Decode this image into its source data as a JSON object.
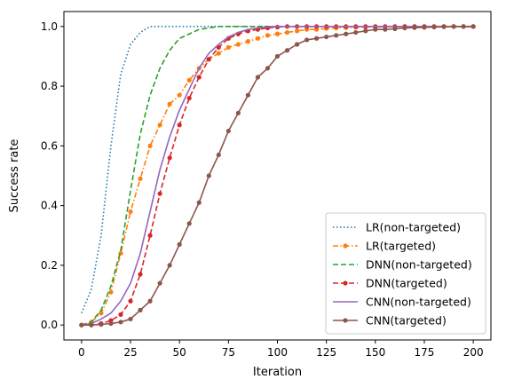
{
  "chart_data": {
    "type": "line",
    "xlabel": "Iteration",
    "ylabel": "Success rate",
    "xlim": [
      -9,
      209
    ],
    "ylim": [
      -0.05,
      1.05
    ],
    "xticks": [
      0,
      25,
      50,
      75,
      100,
      125,
      150,
      175,
      200
    ],
    "yticks": [
      0.0,
      0.2,
      0.4,
      0.6,
      0.8,
      1.0
    ],
    "ytick_labels": [
      "0.0",
      "0.2",
      "0.4",
      "0.6",
      "0.8",
      "1.0"
    ],
    "legend_position": "lower-right",
    "grid": false,
    "series": [
      {
        "name": "LR(non-targeted)",
        "color": "#1f77b4",
        "dash": "dotted",
        "marker": "none",
        "x": [
          0,
          5,
          10,
          15,
          20,
          25,
          30,
          35,
          40,
          50,
          60,
          80,
          100,
          150,
          200
        ],
        "y": [
          0.04,
          0.12,
          0.3,
          0.6,
          0.84,
          0.94,
          0.98,
          1.0,
          1.0,
          1.0,
          1.0,
          1.0,
          1.0,
          1.0,
          1.0
        ]
      },
      {
        "name": "LR(targeted)",
        "color": "#ff7f0e",
        "dash": "dashdot",
        "marker": "dot",
        "x": [
          0,
          5,
          10,
          15,
          20,
          25,
          30,
          35,
          40,
          45,
          50,
          55,
          60,
          65,
          70,
          75,
          80,
          85,
          90,
          95,
          100,
          105,
          110,
          115,
          120,
          125,
          130,
          135,
          140,
          145,
          150,
          155,
          160,
          165,
          170,
          175,
          180,
          185,
          190,
          195,
          200
        ],
        "y": [
          0.0,
          0.01,
          0.04,
          0.11,
          0.24,
          0.38,
          0.49,
          0.6,
          0.67,
          0.74,
          0.77,
          0.82,
          0.86,
          0.89,
          0.91,
          0.93,
          0.94,
          0.95,
          0.96,
          0.97,
          0.975,
          0.98,
          0.985,
          0.99,
          0.99,
          0.993,
          0.995,
          0.996,
          0.997,
          0.998,
          0.998,
          0.999,
          0.999,
          1.0,
          1.0,
          1.0,
          1.0,
          1.0,
          1.0,
          1.0,
          1.0
        ]
      },
      {
        "name": "DNN(non-targeted)",
        "color": "#2ca02c",
        "dash": "dashed",
        "marker": "none",
        "x": [
          0,
          5,
          10,
          15,
          20,
          25,
          30,
          35,
          40,
          45,
          50,
          55,
          60,
          65,
          70,
          80,
          100,
          150,
          200
        ],
        "y": [
          0.0,
          0.01,
          0.05,
          0.13,
          0.25,
          0.45,
          0.64,
          0.77,
          0.86,
          0.92,
          0.96,
          0.975,
          0.99,
          0.995,
          1.0,
          1.0,
          1.0,
          1.0,
          1.0
        ]
      },
      {
        "name": "DNN(targeted)",
        "color": "#d62728",
        "dash": "dashed",
        "marker": "dot",
        "x": [
          0,
          5,
          10,
          15,
          20,
          25,
          30,
          35,
          40,
          45,
          50,
          55,
          60,
          65,
          70,
          75,
          80,
          85,
          90,
          95,
          100,
          105,
          110,
          115,
          120,
          125,
          130,
          135,
          140,
          145,
          150,
          155,
          160,
          165,
          170,
          175,
          180,
          185,
          190,
          195,
          200
        ],
        "y": [
          0.0,
          0.0,
          0.005,
          0.015,
          0.035,
          0.08,
          0.17,
          0.3,
          0.44,
          0.56,
          0.67,
          0.76,
          0.83,
          0.89,
          0.93,
          0.96,
          0.975,
          0.985,
          0.99,
          0.995,
          0.998,
          1.0,
          1.0,
          1.0,
          1.0,
          1.0,
          1.0,
          1.0,
          1.0,
          1.0,
          1.0,
          1.0,
          1.0,
          1.0,
          1.0,
          1.0,
          1.0,
          1.0,
          1.0,
          1.0,
          1.0
        ]
      },
      {
        "name": "CNN(non-targeted)",
        "color": "#9467bd",
        "dash": "solid",
        "marker": "none",
        "x": [
          0,
          5,
          10,
          15,
          20,
          25,
          30,
          35,
          40,
          45,
          50,
          55,
          60,
          65,
          70,
          75,
          80,
          85,
          90,
          95,
          100,
          110,
          150,
          200
        ],
        "y": [
          0.0,
          0.005,
          0.02,
          0.04,
          0.08,
          0.14,
          0.24,
          0.38,
          0.52,
          0.63,
          0.72,
          0.79,
          0.86,
          0.91,
          0.94,
          0.965,
          0.98,
          0.99,
          0.995,
          0.998,
          1.0,
          1.0,
          1.0,
          1.0
        ]
      },
      {
        "name": "CNN(targeted)",
        "color": "#8c564b",
        "dash": "solid",
        "marker": "dot",
        "x": [
          0,
          5,
          10,
          15,
          20,
          25,
          30,
          35,
          40,
          45,
          50,
          55,
          60,
          65,
          70,
          75,
          80,
          85,
          90,
          95,
          100,
          105,
          110,
          115,
          120,
          125,
          130,
          135,
          140,
          145,
          150,
          155,
          160,
          165,
          170,
          175,
          180,
          185,
          190,
          195,
          200
        ],
        "y": [
          0.0,
          0.0,
          0.002,
          0.005,
          0.01,
          0.02,
          0.05,
          0.08,
          0.14,
          0.2,
          0.27,
          0.34,
          0.41,
          0.5,
          0.57,
          0.65,
          0.71,
          0.77,
          0.83,
          0.86,
          0.9,
          0.92,
          0.94,
          0.955,
          0.96,
          0.965,
          0.97,
          0.975,
          0.98,
          0.985,
          0.99,
          0.99,
          0.992,
          0.995,
          0.996,
          0.997,
          0.998,
          0.999,
          1.0,
          1.0,
          1.0
        ]
      }
    ]
  }
}
